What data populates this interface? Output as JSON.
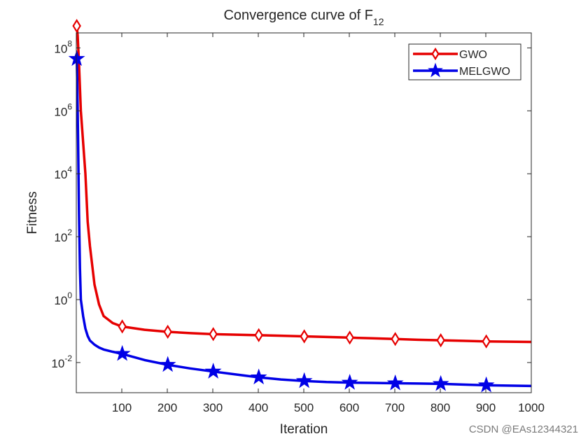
{
  "chart_data": {
    "type": "line",
    "title": "Convergence curve of F",
    "title_subscript": "12",
    "xlabel": "Iteration",
    "ylabel": "Fitness",
    "yscale": "log",
    "xlim": [
      0,
      1000
    ],
    "ylim": [
      0.0011,
      300000000
    ],
    "x_ticks": [
      100,
      200,
      300,
      400,
      500,
      600,
      700,
      800,
      900,
      1000
    ],
    "y_ticks": [
      {
        "base": "10",
        "exp": "-2",
        "value": 0.01
      },
      {
        "base": "10",
        "exp": "0",
        "value": 1
      },
      {
        "base": "10",
        "exp": "2",
        "value": 100
      },
      {
        "base": "10",
        "exp": "4",
        "value": 10000
      },
      {
        "base": "10",
        "exp": "6",
        "value": 1000000
      },
      {
        "base": "10",
        "exp": "8",
        "value": 100000000
      }
    ],
    "legend_position": "top-right",
    "series": [
      {
        "name": "GWO",
        "color": "#e60000",
        "marker": "diamond",
        "x": [
          1,
          3,
          6,
          10,
          15,
          20,
          25,
          30,
          40,
          50,
          60,
          80,
          100,
          150,
          200,
          250,
          300,
          350,
          400,
          450,
          500,
          550,
          600,
          650,
          700,
          750,
          800,
          850,
          900,
          950,
          1000
        ],
        "values": [
          500000000,
          250000000,
          30000000,
          1000000,
          100000,
          10000,
          300,
          50,
          3,
          0.7,
          0.3,
          0.18,
          0.14,
          0.11,
          0.095,
          0.086,
          0.08,
          0.077,
          0.074,
          0.071,
          0.068,
          0.065,
          0.062,
          0.059,
          0.056,
          0.053,
          0.051,
          0.049,
          0.047,
          0.046,
          0.045
        ],
        "marker_x": [
          1,
          101,
          201,
          301,
          401,
          501,
          601,
          701,
          801,
          901
        ],
        "marker_values": [
          500000000,
          0.14,
          0.095,
          0.08,
          0.074,
          0.068,
          0.062,
          0.056,
          0.051,
          0.047
        ]
      },
      {
        "name": "MELGWO",
        "color": "#0000e6",
        "marker": "star",
        "x": [
          1,
          2,
          4,
          6,
          8,
          10,
          15,
          20,
          25,
          30,
          40,
          50,
          60,
          80,
          100,
          150,
          200,
          250,
          300,
          350,
          400,
          450,
          500,
          550,
          600,
          650,
          700,
          750,
          800,
          850,
          900,
          950,
          1000
        ],
        "values": [
          45000000,
          10000000,
          100000,
          500,
          10,
          1,
          0.3,
          0.12,
          0.07,
          0.05,
          0.037,
          0.03,
          0.026,
          0.022,
          0.019,
          0.012,
          0.0085,
          0.0065,
          0.0052,
          0.0042,
          0.0034,
          0.0029,
          0.0026,
          0.0024,
          0.0023,
          0.00225,
          0.0022,
          0.00215,
          0.0021,
          0.002,
          0.0019,
          0.00185,
          0.0018
        ],
        "marker_x": [
          1,
          101,
          201,
          301,
          401,
          501,
          601,
          701,
          801,
          901
        ],
        "marker_values": [
          45000000,
          0.019,
          0.0085,
          0.0052,
          0.0034,
          0.0026,
          0.0023,
          0.0022,
          0.0021,
          0.0019
        ]
      }
    ]
  },
  "watermark": "CSDN @EAs12344321"
}
